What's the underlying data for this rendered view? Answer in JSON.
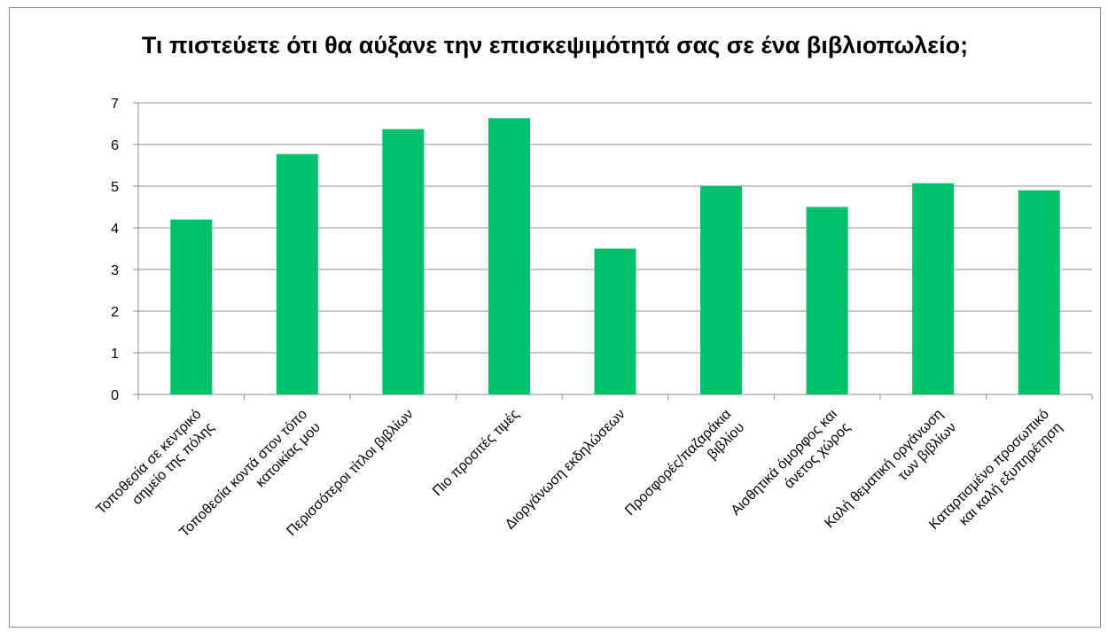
{
  "chart_data": {
    "type": "bar",
    "title": "Τι πιστεύετε ότι θα αύξανε την επισκεψιμότητά σας σε ένα βιβλιοπωλείο;",
    "xlabel": "",
    "ylabel": "",
    "ylim": [
      0,
      7
    ],
    "yticks": [
      "0",
      "1",
      "2",
      "3",
      "4",
      "5",
      "6",
      "7"
    ],
    "grid": true,
    "legend": "none",
    "bar_color": "#00c06c",
    "categories": [
      [
        "Τοποθεσία σε κεντρικό",
        "σημείο της πόλης"
      ],
      [
        "Τοποθεσία κοντά στον τόπο",
        "κατοικίας μου"
      ],
      [
        "Περισσότεροι τίτλοι βιβλίων"
      ],
      [
        "Πιο προσιτές τιμές"
      ],
      [
        "Διοργάνωση εκδηλώσεων"
      ],
      [
        "Προσφορές/παζαράκια",
        "βιβλίου"
      ],
      [
        "Αισθητικά όμορφος και",
        "άνετος χώρος"
      ],
      [
        "Καλή θεματική οργάνωση",
        "των βιβλίων"
      ],
      [
        "Καταρτισμένο προσωπικό",
        "και καλή εξυπηρέτηση"
      ]
    ],
    "values": [
      4.2,
      5.77,
      6.37,
      6.63,
      3.5,
      5.0,
      4.5,
      5.07,
      4.9
    ]
  }
}
